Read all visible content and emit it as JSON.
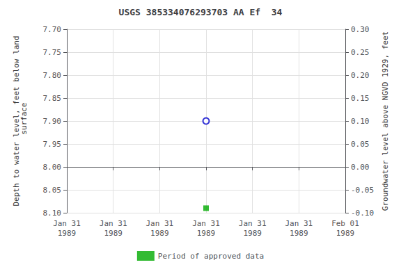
{
  "chart_data": {
    "type": "scatter",
    "title": "USGS 385334076293703 AA Ef  34",
    "ylabel": "Depth to water level, feet below land\n surface",
    "y2label": "Groundwater level above NGVD 1929, feet",
    "categories": [
      "Jan 31\n1989",
      "Jan 31\n1989",
      "Jan 31\n1989",
      "Jan 31\n1989",
      "Jan 31\n1989",
      "Jan 31\n1989",
      "Feb 01\n1989"
    ],
    "series": [
      {
        "color": "#0000cc",
        "marker": "circle",
        "values": [
          null,
          null,
          null,
          7.9,
          null,
          null,
          null
        ]
      },
      {
        "name": "Period of approved data",
        "color": "#00aa00",
        "marker": "square",
        "values": [
          null,
          null,
          null,
          8.09,
          null,
          null,
          null
        ]
      }
    ],
    "ylim": [
      8.1,
      7.7
    ],
    "yticks": [
      {
        "value": 7.7,
        "label": "7.70"
      },
      {
        "value": 7.75,
        "label": "7.75"
      },
      {
        "value": 7.8,
        "label": "7.80"
      },
      {
        "value": 7.85,
        "label": "7.85"
      },
      {
        "value": 7.9,
        "label": "7.90"
      },
      {
        "value": 7.95,
        "label": "7.95"
      },
      {
        "value": 8.0,
        "label": "8.00"
      },
      {
        "value": 8.05,
        "label": "8.05"
      },
      {
        "value": 8.1,
        "label": "8.10"
      }
    ],
    "y2lim": [
      -0.1,
      0.3
    ],
    "y2ticks": [
      {
        "value": 0.3,
        "label": "0.30"
      },
      {
        "value": 0.25,
        "label": "0.25"
      },
      {
        "value": 0.2,
        "label": "0.20"
      },
      {
        "value": 0.15,
        "label": "0.15"
      },
      {
        "value": 0.1,
        "label": "0.10"
      },
      {
        "value": 0.05,
        "label": "0.05"
      },
      {
        "value": 0.0,
        "label": "0.00"
      },
      {
        "value": -0.05,
        "label": "-0.05"
      },
      {
        "value": -0.1,
        "label": "-0.10"
      }
    ],
    "grid": true,
    "legend": "bottom"
  }
}
